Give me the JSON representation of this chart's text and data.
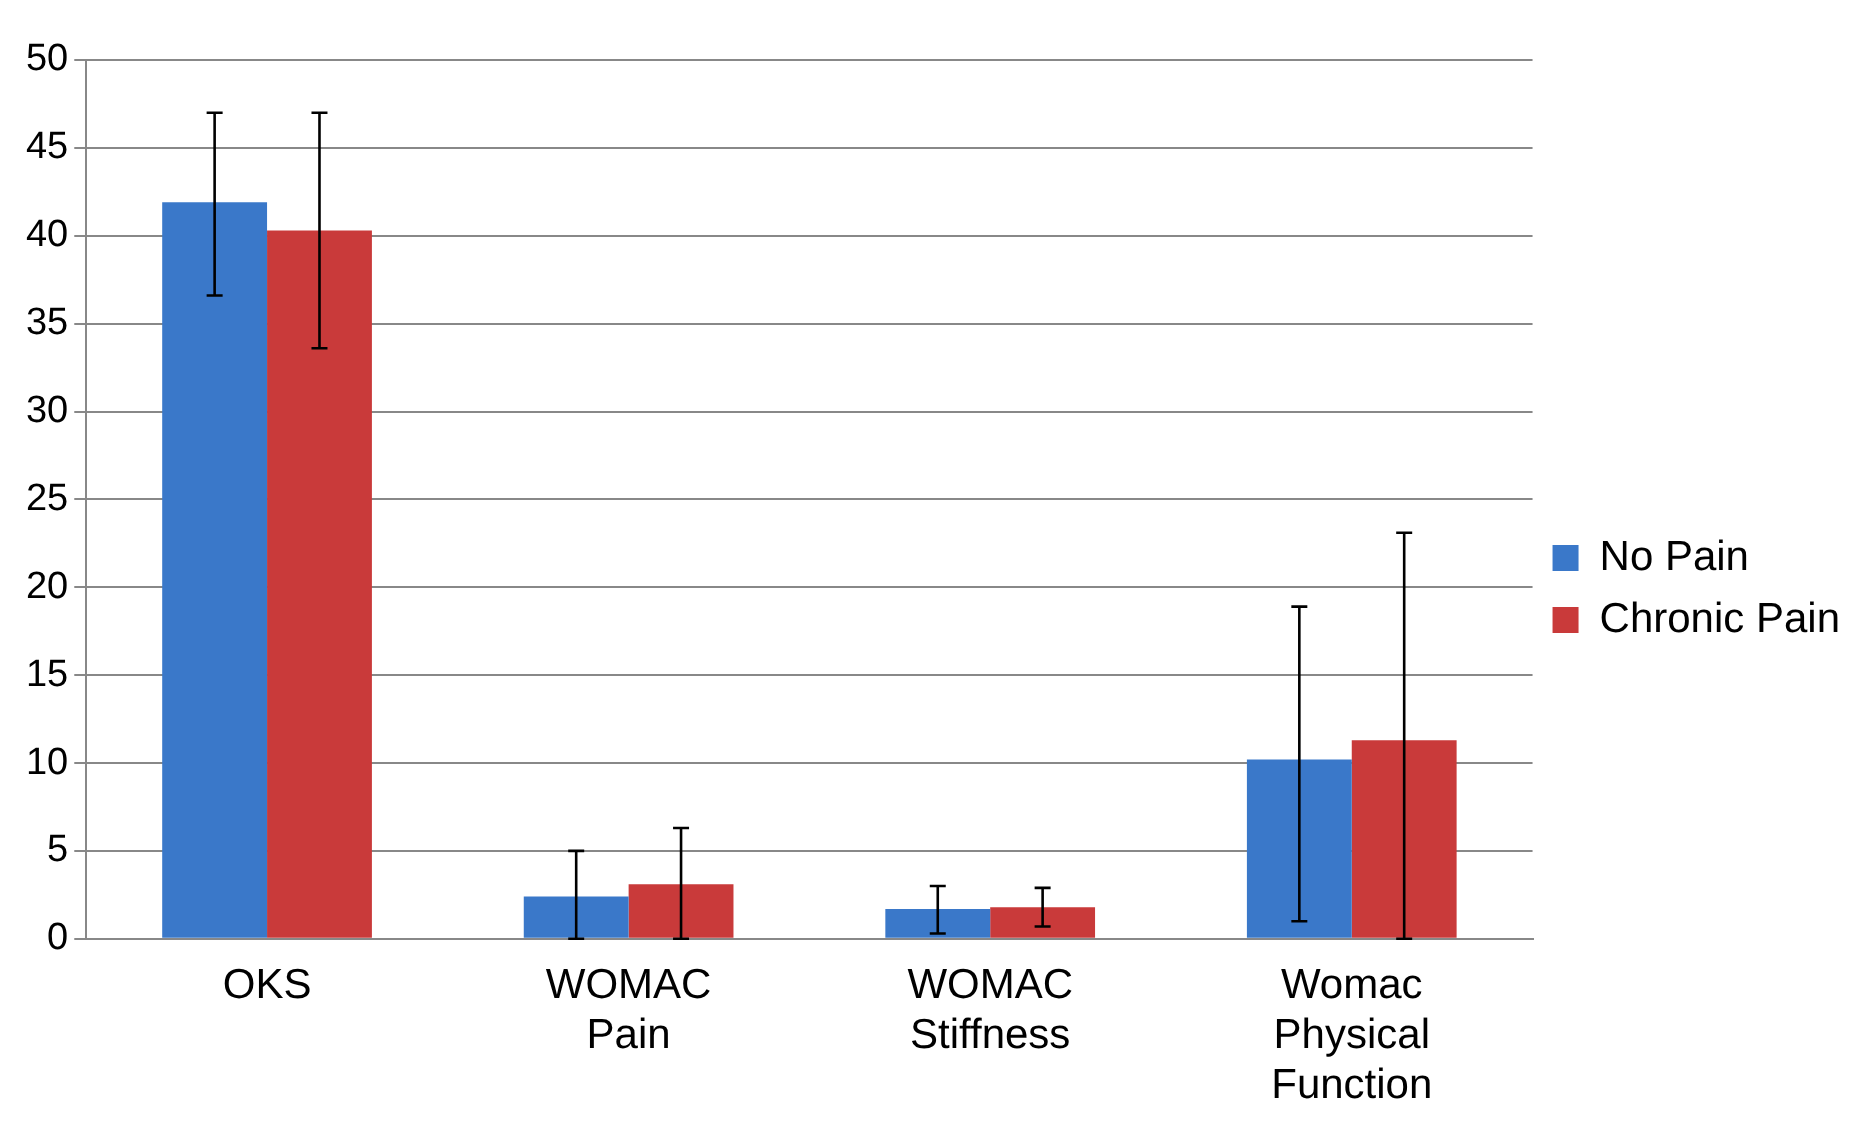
{
  "chart_data": {
    "type": "bar",
    "categories": [
      "OKS",
      "WOMAC Pain",
      "WOMAC Stiffness",
      "Womac Physical Function"
    ],
    "series": [
      {
        "name": "No Pain",
        "color": "#3a78c9",
        "values": [
          41.9,
          2.4,
          1.7,
          10.2
        ],
        "errors": [
          [
            36.6,
            47
          ],
          [
            0,
            5
          ],
          [
            0.3,
            3
          ],
          [
            1,
            18.9
          ]
        ]
      },
      {
        "name": "Chronic Pain",
        "color": "#c93a3a",
        "values": [
          40.3,
          3.1,
          1.8,
          11.3
        ],
        "errors": [
          [
            33.6,
            47
          ],
          [
            0,
            6.3
          ],
          [
            0.7,
            2.9
          ],
          [
            0,
            23.1
          ]
        ]
      }
    ],
    "ylim": [
      0,
      50
    ],
    "yticks": [
      0,
      5,
      10,
      15,
      20,
      25,
      30,
      35,
      40,
      45,
      50
    ],
    "grid": "y",
    "legend": "right"
  }
}
